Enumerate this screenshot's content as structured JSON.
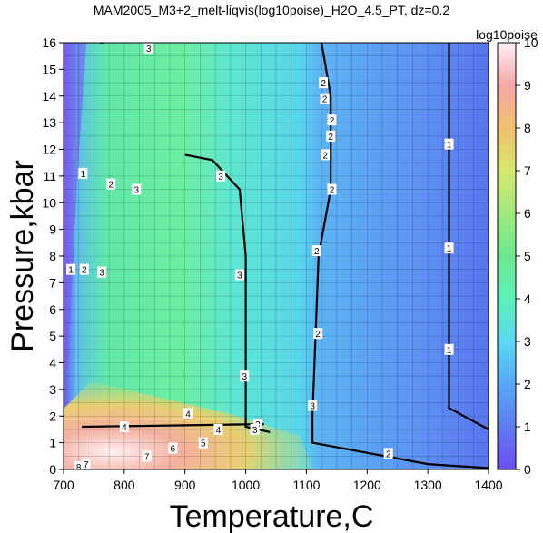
{
  "chart_data": {
    "type": "heatmap",
    "title": "MAM2005_M3+2_melt-liqvis(log10poise)_H2O_4.5_PT, dz=0.2",
    "xlabel": "Temperature,C",
    "ylabel": "Pressure,kbar",
    "xlim": [
      700,
      1400
    ],
    "ylim": [
      0,
      16
    ],
    "xticks": [
      700,
      800,
      900,
      1000,
      1100,
      1200,
      1300,
      1400
    ],
    "yticks": [
      0,
      1,
      2,
      3,
      4,
      5,
      6,
      7,
      8,
      9,
      10,
      11,
      12,
      13,
      14,
      15,
      16
    ],
    "colorbar": {
      "label": "log10poise",
      "range": [
        0,
        10
      ],
      "ticks": [
        0,
        1,
        2,
        3,
        4,
        5,
        6,
        7,
        8,
        9,
        10
      ],
      "colors": [
        "#6e50f0",
        "#5f7cf0",
        "#58a8f5",
        "#5cd8f0",
        "#5ef0b8",
        "#6ee890",
        "#a0e880",
        "#d8e870",
        "#f0c070",
        "#f4a8a8",
        "#fff0f8"
      ]
    },
    "grid": true,
    "contour_lines": [
      {
        "level": 1,
        "points": [
          [
            1335,
            16
          ],
          [
            1335,
            2.3
          ],
          [
            1400,
            1.5
          ]
        ]
      },
      {
        "level": 2,
        "points": [
          [
            1125,
            16
          ],
          [
            1140,
            14
          ],
          [
            1140,
            12
          ],
          [
            1140,
            10.5
          ],
          [
            1120,
            8
          ],
          [
            1115,
            5
          ],
          [
            1110,
            2
          ],
          [
            1110,
            1
          ],
          [
            1300,
            0.2
          ],
          [
            1400,
            0.05
          ]
        ]
      },
      {
        "level": 3,
        "points": [
          [
            900,
            11.8
          ],
          [
            945,
            11.6
          ],
          [
            990,
            10.5
          ],
          [
            1000,
            8
          ],
          [
            1000,
            3
          ],
          [
            1000,
            1.6
          ],
          [
            1040,
            1.4
          ]
        ]
      },
      {
        "level": 3,
        "points": [
          [
            760,
            16
          ],
          [
            840,
            16.2
          ]
        ]
      },
      {
        "level": 4,
        "points": [
          [
            730,
            1.6
          ],
          [
            1030,
            1.7
          ]
        ]
      }
    ],
    "contour_labels": [
      {
        "text": "3",
        "x": 840,
        "y": 15.8
      },
      {
        "text": "2",
        "x": 1128,
        "y": 14.5
      },
      {
        "text": "2",
        "x": 1130,
        "y": 13.9
      },
      {
        "text": "2",
        "x": 1142,
        "y": 13.1
      },
      {
        "text": "2",
        "x": 1140,
        "y": 12.5
      },
      {
        "text": "1",
        "x": 1335,
        "y": 12.2
      },
      {
        "text": "2",
        "x": 1131,
        "y": 11.8
      },
      {
        "text": "1",
        "x": 732,
        "y": 11.1
      },
      {
        "text": "2",
        "x": 778,
        "y": 10.7
      },
      {
        "text": "3",
        "x": 820,
        "y": 10.5
      },
      {
        "text": "3",
        "x": 959,
        "y": 11.0
      },
      {
        "text": "2",
        "x": 1142,
        "y": 10.5
      },
      {
        "text": "1",
        "x": 1335,
        "y": 8.3
      },
      {
        "text": "2",
        "x": 1117,
        "y": 8.2
      },
      {
        "text": "1",
        "x": 712,
        "y": 7.5
      },
      {
        "text": "2",
        "x": 734,
        "y": 7.5
      },
      {
        "text": "3",
        "x": 763,
        "y": 7.4
      },
      {
        "text": "3",
        "x": 990,
        "y": 7.3
      },
      {
        "text": "2",
        "x": 1119,
        "y": 5.1
      },
      {
        "text": "1",
        "x": 1335,
        "y": 4.5
      },
      {
        "text": "3",
        "x": 998,
        "y": 3.5
      },
      {
        "text": "3",
        "x": 1110,
        "y": 2.4
      },
      {
        "text": "4",
        "x": 905,
        "y": 2.1
      },
      {
        "text": "4",
        "x": 800,
        "y": 1.6
      },
      {
        "text": "4",
        "x": 955,
        "y": 1.5
      },
      {
        "text": "3",
        "x": 1020,
        "y": 1.7
      },
      {
        "text": "3",
        "x": 1015,
        "y": 1.5
      },
      {
        "text": "5",
        "x": 930,
        "y": 1.0
      },
      {
        "text": "6",
        "x": 880,
        "y": 0.8
      },
      {
        "text": "7",
        "x": 837,
        "y": 0.5
      },
      {
        "text": "2",
        "x": 1235,
        "y": 0.6
      },
      {
        "text": "7",
        "x": 737,
        "y": 0.2
      },
      {
        "text": "8",
        "x": 725,
        "y": 0.1
      }
    ]
  }
}
